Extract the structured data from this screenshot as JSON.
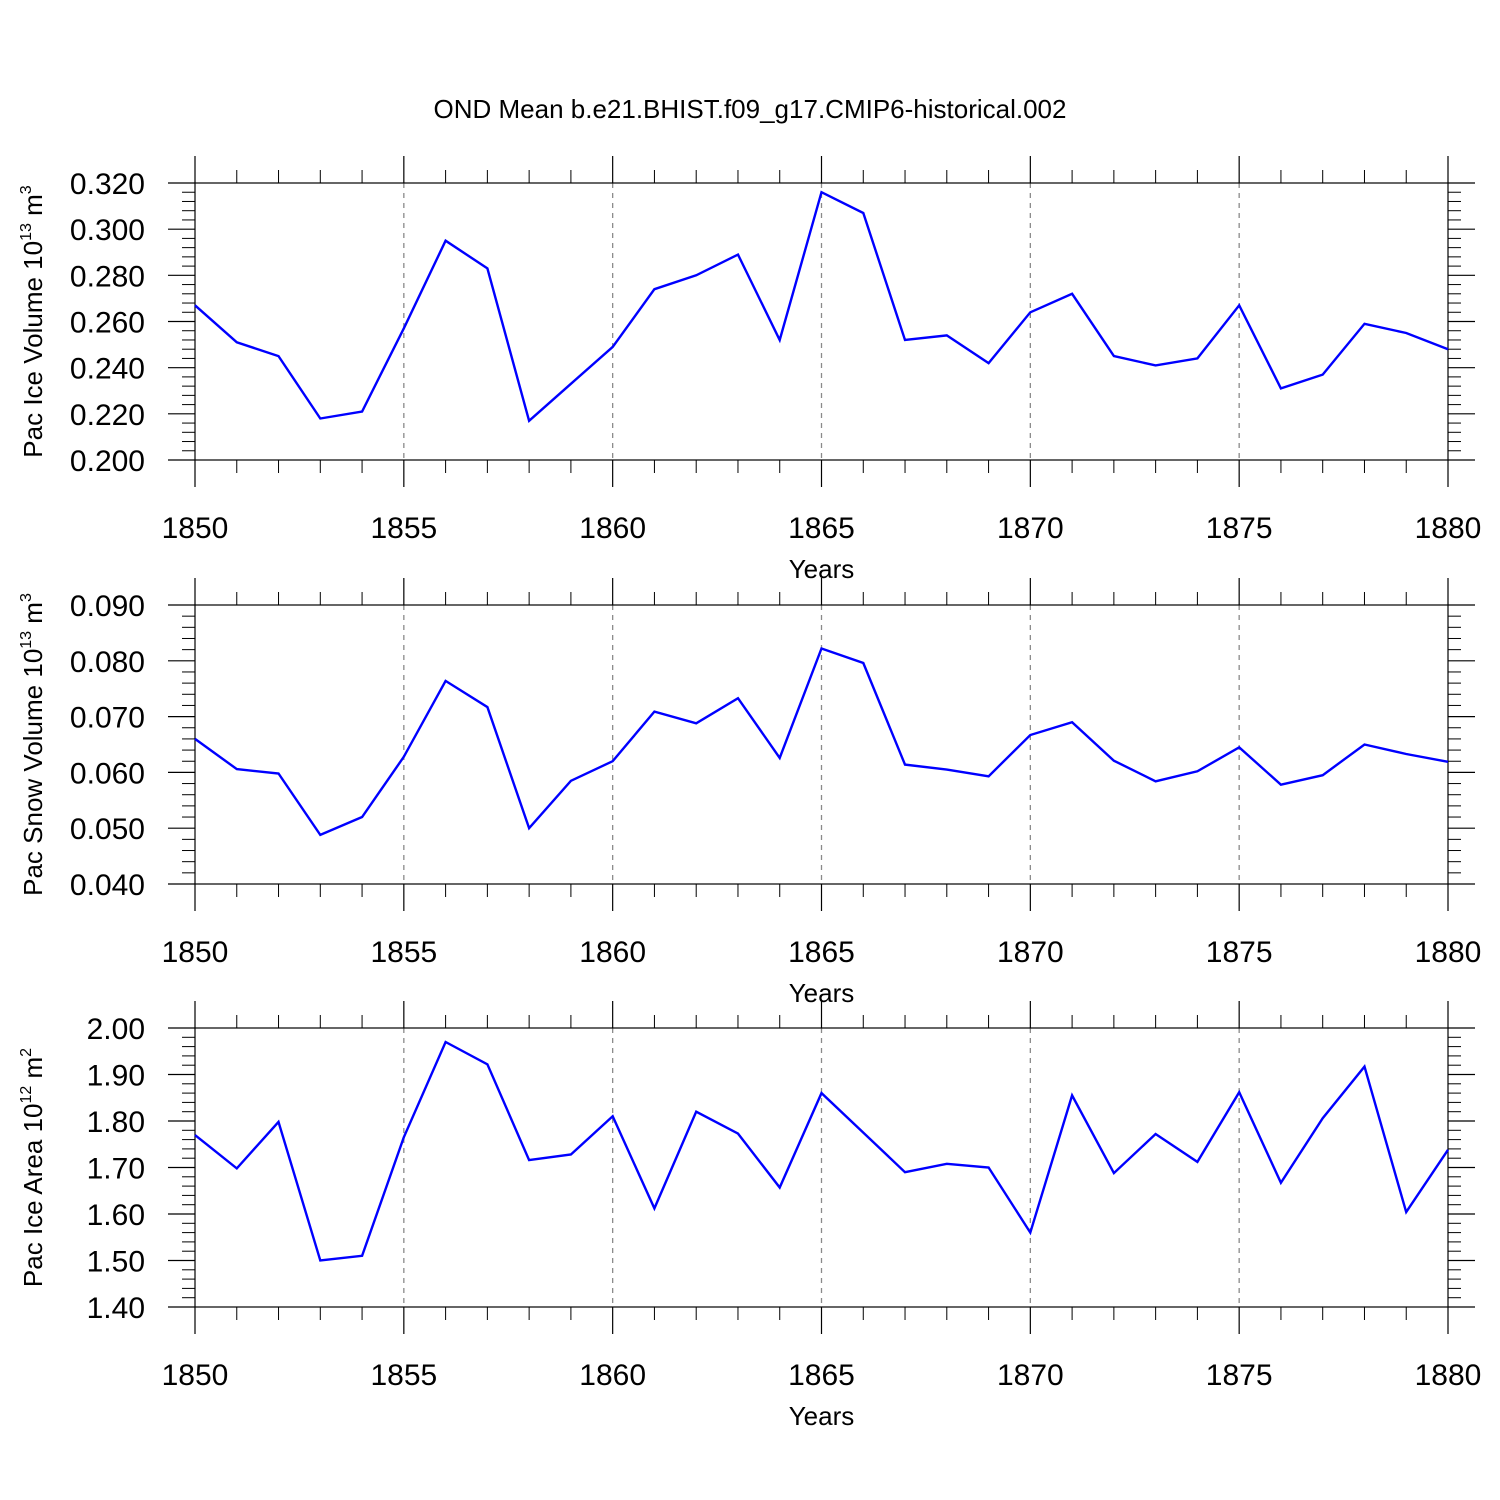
{
  "title": "OND Mean b.e21.BHIST.f09_g17.CMIP6-historical.002",
  "colors": {
    "line": "#0000ff",
    "grid": "#8a8a8a",
    "axis": "#000000"
  },
  "chart_data": [
    {
      "type": "line",
      "xlabel": "Years",
      "ylabel": {
        "prefix": "Pac Ice Volume 10",
        "exp": "13",
        "unit": " m",
        "unit_exp": "3"
      },
      "xlim": [
        1850,
        1880
      ],
      "ylim": [
        0.2,
        0.32
      ],
      "xticks": [
        1850,
        1855,
        1860,
        1865,
        1870,
        1875,
        1880
      ],
      "ytick_labels": [
        "0.200",
        "0.220",
        "0.240",
        "0.260",
        "0.280",
        "0.300",
        "0.320"
      ],
      "yticks": [
        0.2,
        0.22,
        0.24,
        0.26,
        0.28,
        0.3,
        0.32
      ],
      "grid": "vertical dashed at major x ticks",
      "series": [
        {
          "x": [
            1850,
            1851,
            1852,
            1853,
            1854,
            1855,
            1856,
            1857,
            1858,
            1859,
            1860,
            1861,
            1862,
            1863,
            1864,
            1865,
            1866,
            1867,
            1868,
            1869,
            1870,
            1871,
            1872,
            1873,
            1874,
            1875,
            1876,
            1877,
            1878,
            1879,
            1880
          ],
          "values": [
            0.267,
            0.251,
            0.245,
            0.218,
            0.221,
            0.257,
            0.295,
            0.283,
            0.217,
            0.233,
            0.249,
            0.274,
            0.28,
            0.289,
            0.252,
            0.316,
            0.307,
            0.252,
            0.254,
            0.242,
            0.264,
            0.272,
            0.245,
            0.241,
            0.244,
            0.267,
            0.231,
            0.237,
            0.259,
            0.255,
            0.248
          ]
        }
      ]
    },
    {
      "type": "line",
      "xlabel": "Years",
      "ylabel": {
        "prefix": "Pac Snow Volume 10",
        "exp": "13",
        "unit": " m",
        "unit_exp": "3"
      },
      "xlim": [
        1850,
        1880
      ],
      "ylim": [
        0.04,
        0.09
      ],
      "xticks": [
        1850,
        1855,
        1860,
        1865,
        1870,
        1875,
        1880
      ],
      "ytick_labels": [
        "0.040",
        "0.050",
        "0.060",
        "0.070",
        "0.080",
        "0.090"
      ],
      "yticks": [
        0.04,
        0.05,
        0.06,
        0.07,
        0.08,
        0.09
      ],
      "grid": "vertical dashed at major x ticks",
      "series": [
        {
          "x": [
            1850,
            1851,
            1852,
            1853,
            1854,
            1855,
            1856,
            1857,
            1858,
            1859,
            1860,
            1861,
            1862,
            1863,
            1864,
            1865,
            1866,
            1867,
            1868,
            1869,
            1870,
            1871,
            1872,
            1873,
            1874,
            1875,
            1876,
            1877,
            1878,
            1879,
            1880
          ],
          "values": [
            0.066,
            0.0606,
            0.0598,
            0.0488,
            0.052,
            0.0628,
            0.0764,
            0.0717,
            0.05,
            0.0585,
            0.062,
            0.0709,
            0.0688,
            0.0733,
            0.0626,
            0.0822,
            0.0796,
            0.0614,
            0.0605,
            0.0593,
            0.0667,
            0.069,
            0.0621,
            0.0584,
            0.0602,
            0.0645,
            0.0578,
            0.0595,
            0.065,
            0.0633,
            0.0619
          ]
        }
      ]
    },
    {
      "type": "line",
      "xlabel": "Years",
      "ylabel": {
        "prefix": "Pac Ice Area 10",
        "exp": "12",
        "unit": " m",
        "unit_exp": "2"
      },
      "xlim": [
        1850,
        1880
      ],
      "ylim": [
        1.4,
        2.0
      ],
      "xticks": [
        1850,
        1855,
        1860,
        1865,
        1870,
        1875,
        1880
      ],
      "ytick_labels": [
        "1.40",
        "1.50",
        "1.60",
        "1.70",
        "1.80",
        "1.90",
        "2.00"
      ],
      "yticks": [
        1.4,
        1.5,
        1.6,
        1.7,
        1.8,
        1.9,
        2.0
      ],
      "grid": "vertical dashed at major x ticks",
      "series": [
        {
          "x": [
            1850,
            1851,
            1852,
            1853,
            1854,
            1855,
            1856,
            1857,
            1858,
            1859,
            1860,
            1861,
            1862,
            1863,
            1864,
            1865,
            1866,
            1867,
            1868,
            1869,
            1870,
            1871,
            1872,
            1873,
            1874,
            1875,
            1876,
            1877,
            1878,
            1879,
            1880
          ],
          "values": [
            1.77,
            1.698,
            1.798,
            1.5,
            1.51,
            1.765,
            1.97,
            1.922,
            1.716,
            1.728,
            1.81,
            1.612,
            1.82,
            1.773,
            1.657,
            1.86,
            1.775,
            1.69,
            1.708,
            1.7,
            1.56,
            1.855,
            1.688,
            1.772,
            1.712,
            1.862,
            1.667,
            1.806,
            1.917,
            1.604,
            1.738
          ]
        }
      ]
    }
  ]
}
